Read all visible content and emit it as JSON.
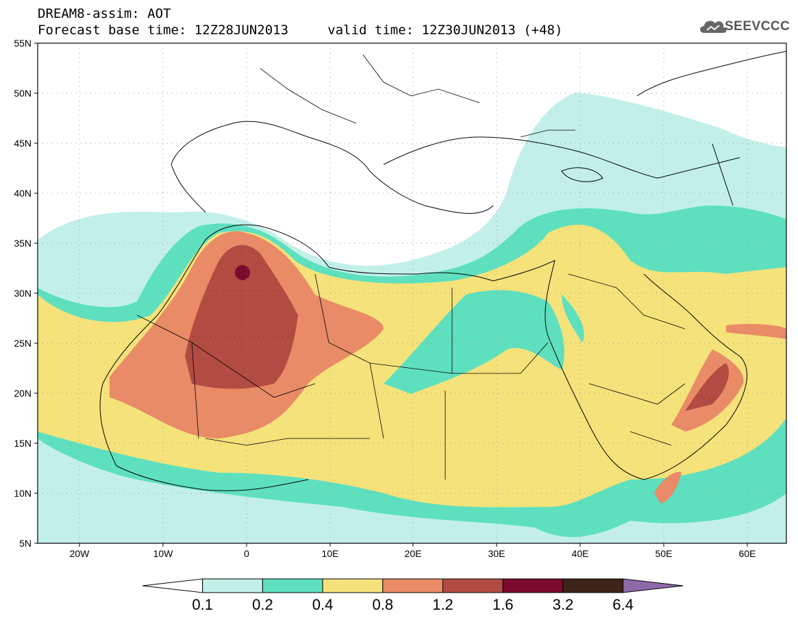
{
  "header": {
    "title": "DREAM8-assim: AOT",
    "base_time_label": "Forecast base time: 12Z28JUN2013",
    "valid_time_label": "valid time: 12Z30JUN2013 (+48)"
  },
  "logo": {
    "text": "SEEVCCC",
    "icon": "cloud-icon"
  },
  "axes": {
    "lat_labels": [
      "55N",
      "50N",
      "45N",
      "40N",
      "35N",
      "30N",
      "25N",
      "20N",
      "15N",
      "10N",
      "5N"
    ],
    "lon_labels": [
      "20W",
      "10W",
      "0",
      "10E",
      "20E",
      "30E",
      "40E",
      "50E",
      "60E"
    ]
  },
  "legend": {
    "values": [
      "0.1",
      "0.2",
      "0.4",
      "0.8",
      "1.2",
      "1.6",
      "3.2",
      "6.4"
    ],
    "colors": [
      "#ffffff",
      "#c2f0e8",
      "#5ee0bf",
      "#f5e27a",
      "#e98b66",
      "#b24b42",
      "#7c0a2c",
      "#3e2418",
      "#8e69a8"
    ]
  }
}
